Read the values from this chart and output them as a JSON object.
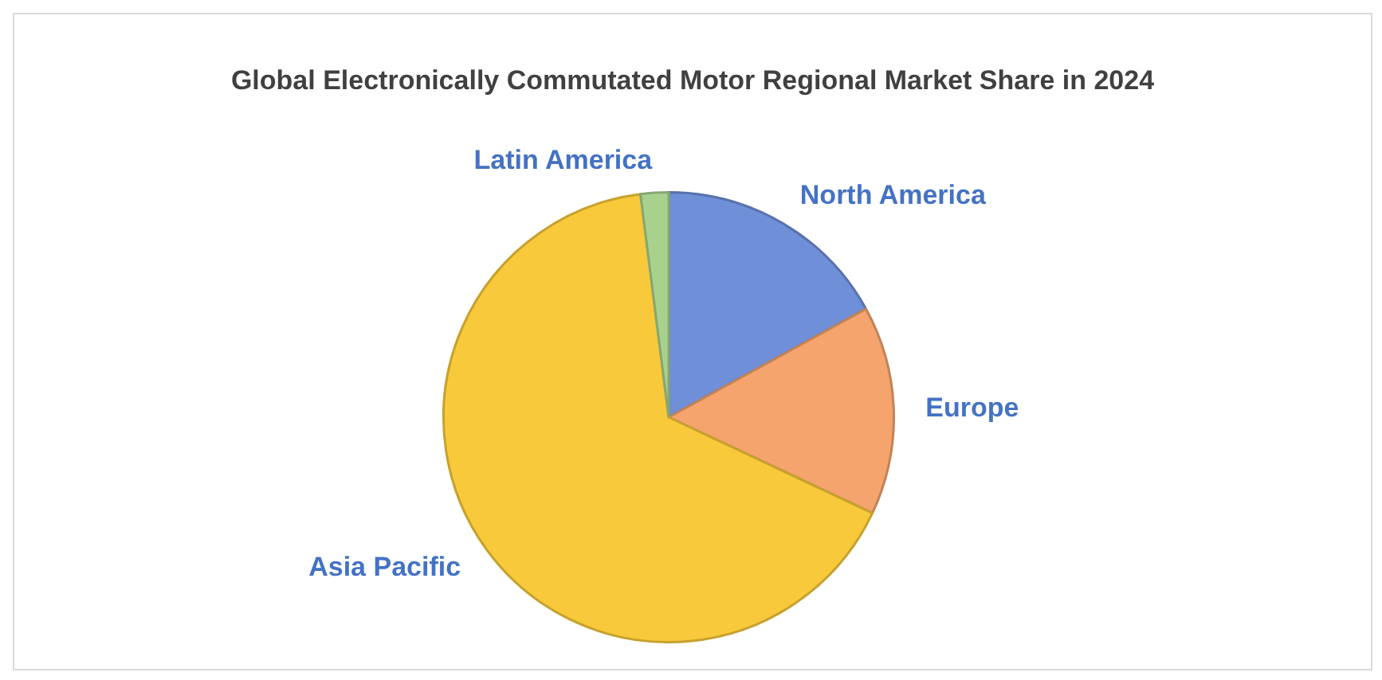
{
  "chart_data": {
    "type": "pie",
    "title": "Global Electronically Commutated Motor Regional Market Share in 2024",
    "categories": [
      "North America",
      "Europe",
      "Asia Pacific",
      "Latin America"
    ],
    "values": [
      17,
      15,
      66,
      2
    ],
    "colors": [
      "#6f8fd8",
      "#f4a46c",
      "#f8c93a",
      "#a9d18e"
    ]
  }
}
